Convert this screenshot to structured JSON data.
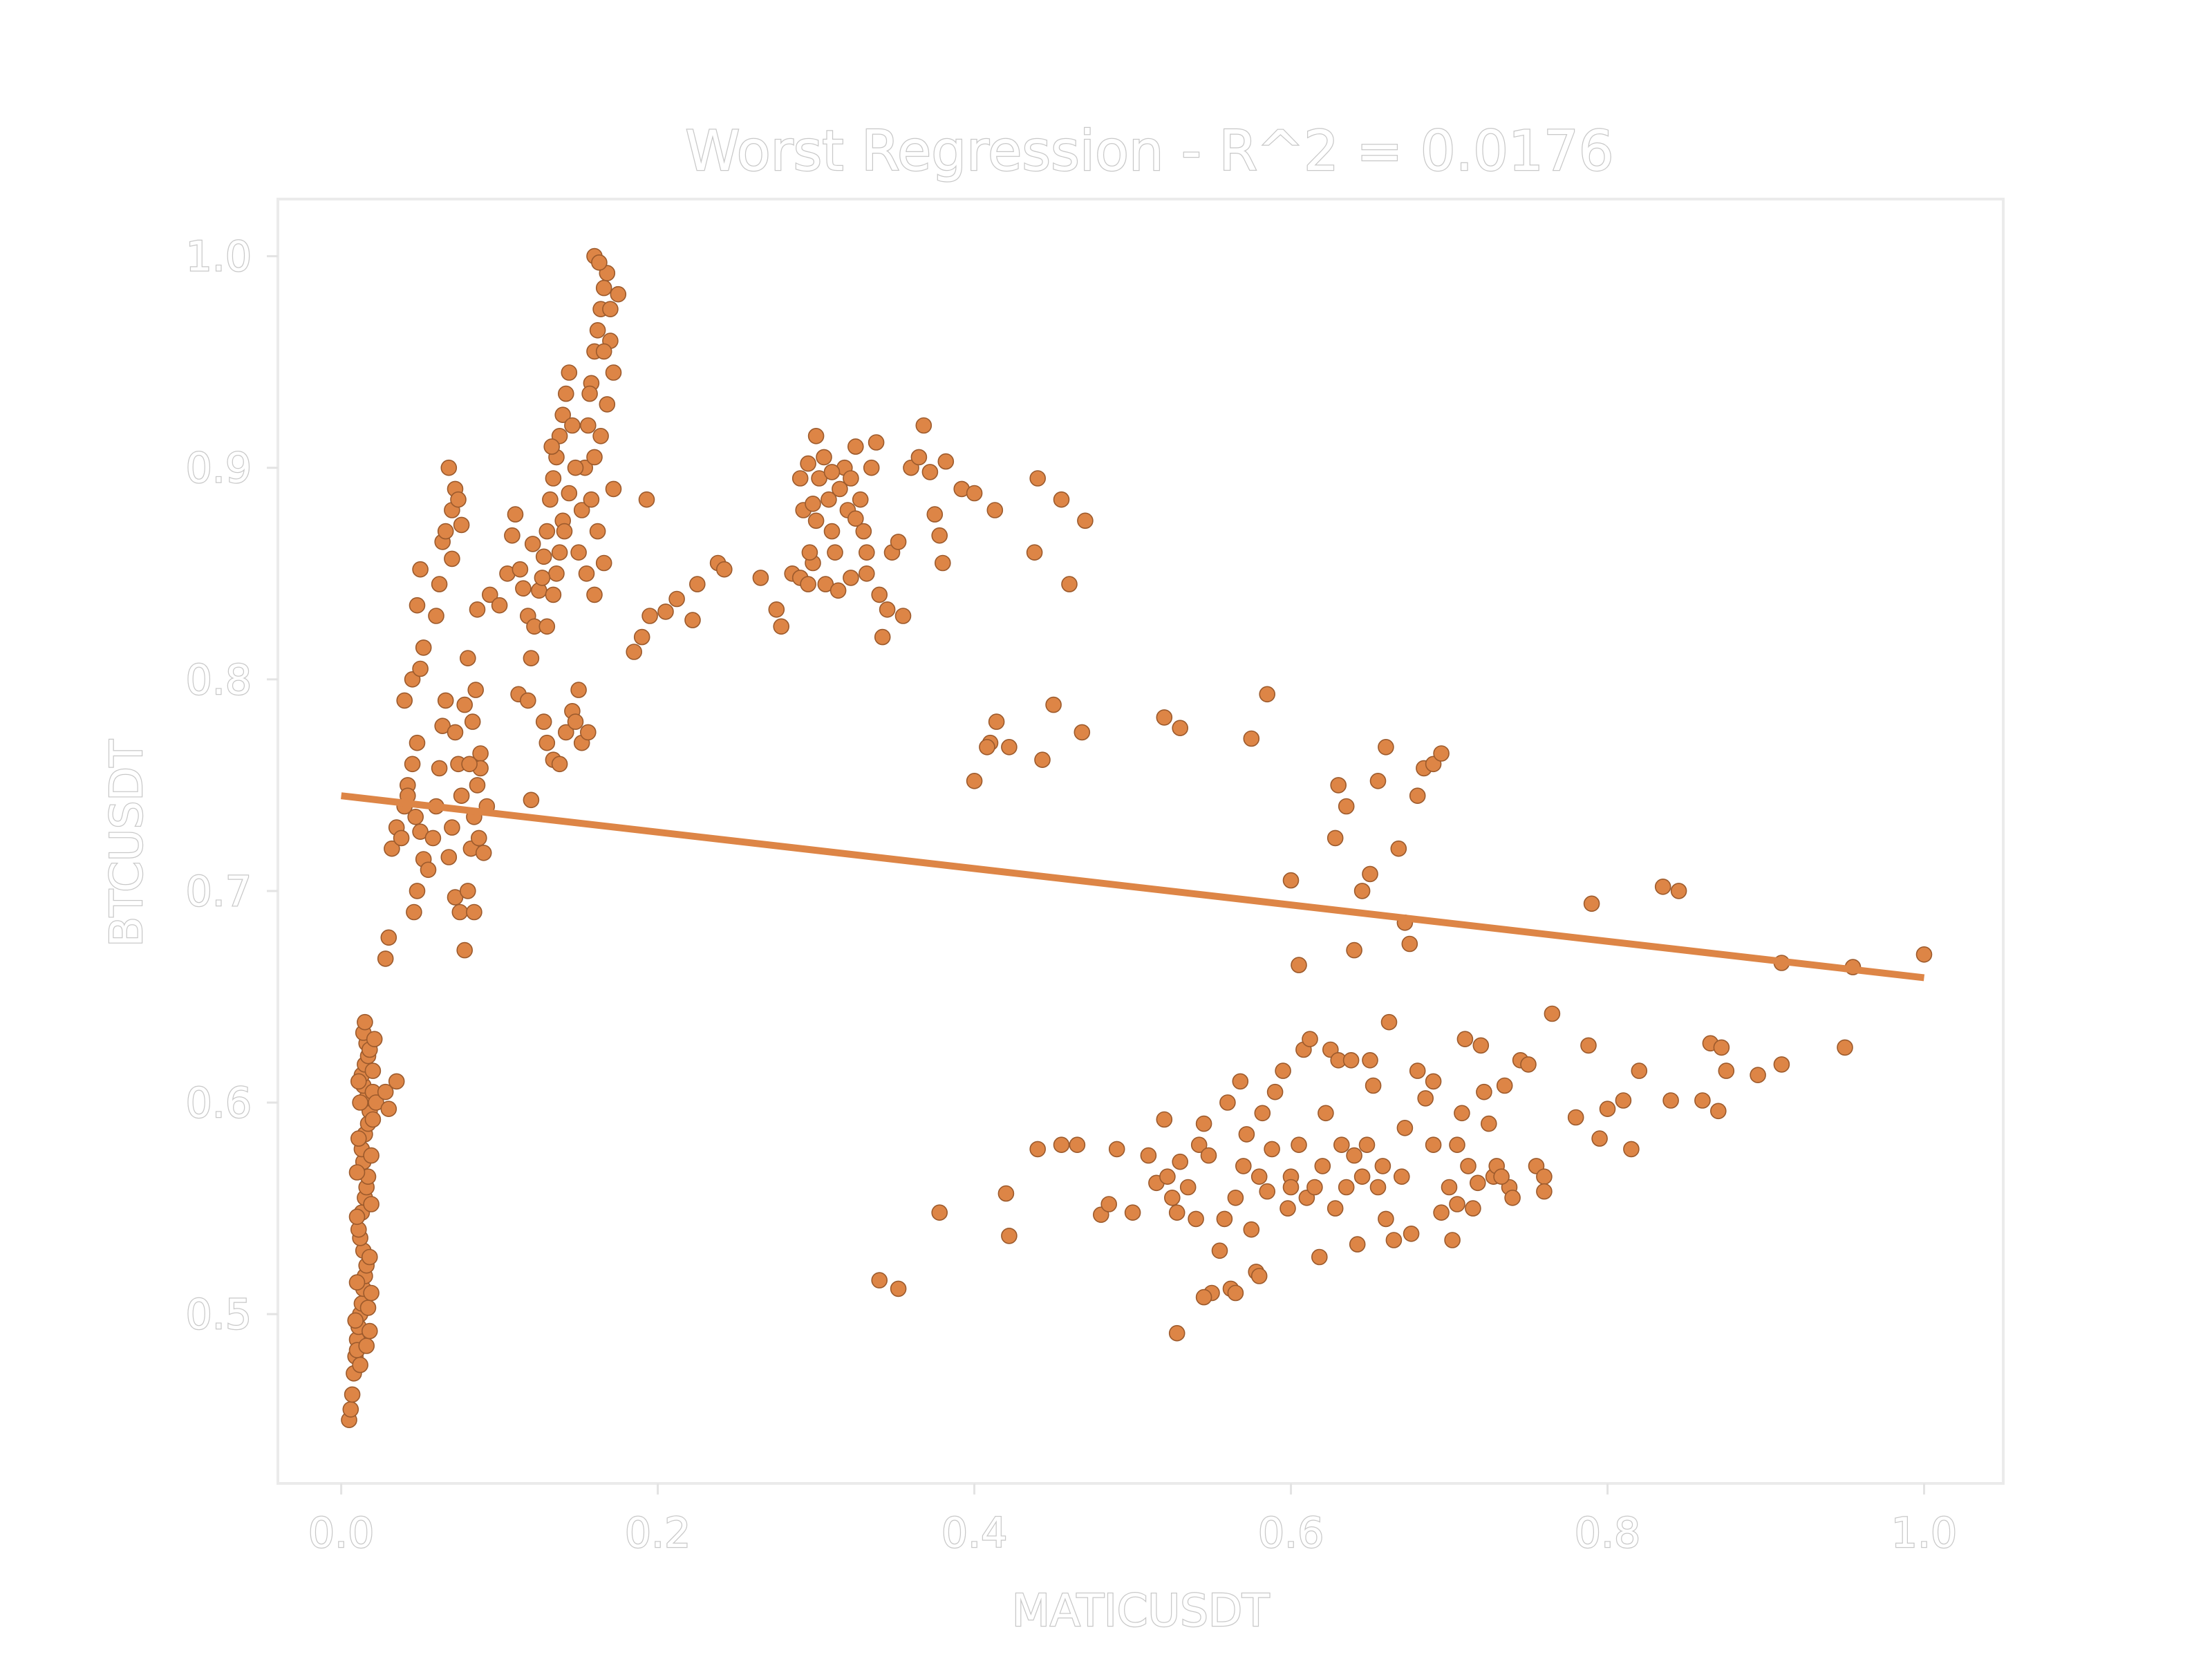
{
  "chart_data": {
    "type": "scatter",
    "title": "Worst Regression - R^2 = 0.0176",
    "xlabel": "MATICUSDT",
    "ylabel": "BTCUSDT",
    "xlim": [
      -0.04,
      1.05
    ],
    "ylim": [
      0.42,
      1.027
    ],
    "xticks": [
      0.0,
      0.2,
      0.4,
      0.6,
      0.8,
      1.0
    ],
    "yticks": [
      0.5,
      0.6,
      0.7,
      0.8,
      0.9,
      1.0
    ],
    "xtick_labels": [
      "0.0",
      "0.2",
      "0.4",
      "0.6",
      "0.8",
      "1.0"
    ],
    "ytick_labels": [
      "0.5",
      "0.6",
      "0.7",
      "0.8",
      "0.9",
      "1.0"
    ],
    "grid": false,
    "point_color": "#dd8546",
    "point_edge_color": "#9c5a2c",
    "regression_line": {
      "x": [
        0.0,
        1.0
      ],
      "y": [
        0.745,
        0.659
      ],
      "color": "#dd8546"
    },
    "points": [
      [
        0.005,
        0.45
      ],
      [
        0.006,
        0.455
      ],
      [
        0.007,
        0.462
      ],
      [
        0.008,
        0.472
      ],
      [
        0.009,
        0.48
      ],
      [
        0.01,
        0.488
      ],
      [
        0.011,
        0.494
      ],
      [
        0.012,
        0.5
      ],
      [
        0.013,
        0.505
      ],
      [
        0.014,
        0.512
      ],
      [
        0.015,
        0.518
      ],
      [
        0.016,
        0.523
      ],
      [
        0.014,
        0.53
      ],
      [
        0.012,
        0.536
      ],
      [
        0.011,
        0.54
      ],
      [
        0.013,
        0.548
      ],
      [
        0.015,
        0.555
      ],
      [
        0.016,
        0.56
      ],
      [
        0.017,
        0.565
      ],
      [
        0.014,
        0.572
      ],
      [
        0.013,
        0.578
      ],
      [
        0.015,
        0.585
      ],
      [
        0.017,
        0.59
      ],
      [
        0.018,
        0.596
      ],
      [
        0.016,
        0.602
      ],
      [
        0.014,
        0.608
      ],
      [
        0.013,
        0.613
      ],
      [
        0.015,
        0.618
      ],
      [
        0.017,
        0.622
      ],
      [
        0.016,
        0.628
      ],
      [
        0.014,
        0.633
      ],
      [
        0.015,
        0.638
      ],
      [
        0.018,
        0.625
      ],
      [
        0.02,
        0.615
      ],
      [
        0.01,
        0.483
      ],
      [
        0.012,
        0.476
      ],
      [
        0.016,
        0.485
      ],
      [
        0.018,
        0.492
      ],
      [
        0.009,
        0.497
      ],
      [
        0.017,
        0.503
      ],
      [
        0.019,
        0.51
      ],
      [
        0.01,
        0.515
      ],
      [
        0.018,
        0.527
      ],
      [
        0.01,
        0.546
      ],
      [
        0.019,
        0.552
      ],
      [
        0.01,
        0.567
      ],
      [
        0.019,
        0.575
      ],
      [
        0.011,
        0.583
      ],
      [
        0.02,
        0.592
      ],
      [
        0.012,
        0.6
      ],
      [
        0.02,
        0.605
      ],
      [
        0.011,
        0.61
      ],
      [
        0.021,
        0.63
      ],
      [
        0.022,
        0.6
      ],
      [
        0.028,
        0.605
      ],
      [
        0.035,
        0.61
      ],
      [
        0.03,
        0.597
      ],
      [
        0.028,
        0.668
      ],
      [
        0.03,
        0.678
      ],
      [
        0.032,
        0.72
      ],
      [
        0.035,
        0.73
      ],
      [
        0.038,
        0.725
      ],
      [
        0.04,
        0.74
      ],
      [
        0.042,
        0.75
      ],
      [
        0.045,
        0.76
      ],
      [
        0.048,
        0.77
      ],
      [
        0.04,
        0.79
      ],
      [
        0.045,
        0.8
      ],
      [
        0.05,
        0.805
      ],
      [
        0.052,
        0.815
      ],
      [
        0.048,
        0.835
      ],
      [
        0.05,
        0.852
      ],
      [
        0.042,
        0.745
      ],
      [
        0.047,
        0.735
      ],
      [
        0.05,
        0.728
      ],
      [
        0.052,
        0.715
      ],
      [
        0.048,
        0.7
      ],
      [
        0.046,
        0.69
      ],
      [
        0.055,
        0.71
      ],
      [
        0.058,
        0.725
      ],
      [
        0.06,
        0.74
      ],
      [
        0.062,
        0.758
      ],
      [
        0.064,
        0.778
      ],
      [
        0.066,
        0.79
      ],
      [
        0.06,
        0.83
      ],
      [
        0.062,
        0.845
      ],
      [
        0.064,
        0.865
      ],
      [
        0.066,
        0.87
      ],
      [
        0.07,
        0.88
      ],
      [
        0.072,
        0.89
      ],
      [
        0.068,
        0.9
      ],
      [
        0.074,
        0.885
      ],
      [
        0.076,
        0.873
      ],
      [
        0.07,
        0.857
      ],
      [
        0.072,
        0.775
      ],
      [
        0.074,
        0.76
      ],
      [
        0.076,
        0.745
      ],
      [
        0.07,
        0.73
      ],
      [
        0.068,
        0.716
      ],
      [
        0.072,
        0.697
      ],
      [
        0.075,
        0.69
      ],
      [
        0.078,
        0.672
      ],
      [
        0.08,
        0.7
      ],
      [
        0.082,
        0.72
      ],
      [
        0.084,
        0.735
      ],
      [
        0.086,
        0.75
      ],
      [
        0.088,
        0.765
      ],
      [
        0.083,
        0.78
      ],
      [
        0.085,
        0.795
      ],
      [
        0.08,
        0.81
      ],
      [
        0.086,
        0.833
      ],
      [
        0.084,
        0.69
      ],
      [
        0.09,
        0.718
      ],
      [
        0.092,
        0.74
      ],
      [
        0.088,
        0.758
      ],
      [
        0.094,
        0.84
      ],
      [
        0.078,
        0.788
      ],
      [
        0.081,
        0.76
      ],
      [
        0.087,
        0.725
      ],
      [
        0.1,
        0.835
      ],
      [
        0.105,
        0.85
      ],
      [
        0.108,
        0.868
      ],
      [
        0.11,
        0.878
      ],
      [
        0.115,
        0.843
      ],
      [
        0.118,
        0.83
      ],
      [
        0.112,
        0.793
      ],
      [
        0.118,
        0.79
      ],
      [
        0.12,
        0.81
      ],
      [
        0.122,
        0.825
      ],
      [
        0.125,
        0.842
      ],
      [
        0.128,
        0.858
      ],
      [
        0.13,
        0.87
      ],
      [
        0.132,
        0.885
      ],
      [
        0.134,
        0.895
      ],
      [
        0.136,
        0.905
      ],
      [
        0.138,
        0.915
      ],
      [
        0.14,
        0.925
      ],
      [
        0.142,
        0.935
      ],
      [
        0.144,
        0.945
      ],
      [
        0.14,
        0.875
      ],
      [
        0.138,
        0.86
      ],
      [
        0.136,
        0.85
      ],
      [
        0.134,
        0.84
      ],
      [
        0.13,
        0.825
      ],
      [
        0.128,
        0.78
      ],
      [
        0.13,
        0.77
      ],
      [
        0.134,
        0.762
      ],
      [
        0.138,
        0.76
      ],
      [
        0.142,
        0.775
      ],
      [
        0.146,
        0.785
      ],
      [
        0.15,
        0.795
      ],
      [
        0.148,
        0.78
      ],
      [
        0.152,
        0.77
      ],
      [
        0.156,
        0.775
      ],
      [
        0.15,
        0.86
      ],
      [
        0.152,
        0.88
      ],
      [
        0.154,
        0.9
      ],
      [
        0.156,
        0.92
      ],
      [
        0.158,
        0.94
      ],
      [
        0.16,
        0.955
      ],
      [
        0.162,
        0.965
      ],
      [
        0.164,
        0.975
      ],
      [
        0.166,
        0.985
      ],
      [
        0.168,
        0.992
      ],
      [
        0.16,
        1.0
      ],
      [
        0.163,
        0.997
      ],
      [
        0.17,
        0.96
      ],
      [
        0.172,
        0.945
      ],
      [
        0.168,
        0.93
      ],
      [
        0.164,
        0.915
      ],
      [
        0.16,
        0.905
      ],
      [
        0.158,
        0.885
      ],
      [
        0.162,
        0.87
      ],
      [
        0.166,
        0.855
      ],
      [
        0.16,
        0.84
      ],
      [
        0.175,
        0.982
      ],
      [
        0.17,
        0.975
      ],
      [
        0.166,
        0.955
      ],
      [
        0.146,
        0.92
      ],
      [
        0.148,
        0.9
      ],
      [
        0.144,
        0.888
      ],
      [
        0.141,
        0.87
      ],
      [
        0.155,
        0.85
      ],
      [
        0.127,
        0.848
      ],
      [
        0.121,
        0.864
      ],
      [
        0.133,
        0.91
      ],
      [
        0.157,
        0.935
      ],
      [
        0.172,
        0.89
      ],
      [
        0.185,
        0.813
      ],
      [
        0.19,
        0.82
      ],
      [
        0.193,
        0.885
      ],
      [
        0.12,
        0.743
      ],
      [
        0.113,
        0.852
      ],
      [
        0.195,
        0.83
      ],
      [
        0.205,
        0.832
      ],
      [
        0.212,
        0.838
      ],
      [
        0.222,
        0.828
      ],
      [
        0.225,
        0.845
      ],
      [
        0.238,
        0.855
      ],
      [
        0.242,
        0.852
      ],
      [
        0.265,
        0.848
      ],
      [
        0.275,
        0.833
      ],
      [
        0.278,
        0.825
      ],
      [
        0.285,
        0.85
      ],
      [
        0.29,
        0.848
      ],
      [
        0.295,
        0.845
      ],
      [
        0.298,
        0.855
      ],
      [
        0.3,
        0.875
      ],
      [
        0.302,
        0.895
      ],
      [
        0.305,
        0.905
      ],
      [
        0.308,
        0.885
      ],
      [
        0.31,
        0.87
      ],
      [
        0.312,
        0.86
      ],
      [
        0.315,
        0.89
      ],
      [
        0.318,
        0.9
      ],
      [
        0.32,
        0.88
      ],
      [
        0.322,
        0.895
      ],
      [
        0.325,
        0.91
      ],
      [
        0.328,
        0.885
      ],
      [
        0.33,
        0.87
      ],
      [
        0.332,
        0.86
      ],
      [
        0.335,
        0.9
      ],
      [
        0.338,
        0.912
      ],
      [
        0.3,
        0.915
      ],
      [
        0.295,
        0.902
      ],
      [
        0.29,
        0.895
      ],
      [
        0.292,
        0.88
      ],
      [
        0.296,
        0.86
      ],
      [
        0.306,
        0.845
      ],
      [
        0.314,
        0.842
      ],
      [
        0.322,
        0.848
      ],
      [
        0.332,
        0.85
      ],
      [
        0.34,
        0.84
      ],
      [
        0.342,
        0.82
      ],
      [
        0.345,
        0.833
      ],
      [
        0.348,
        0.86
      ],
      [
        0.352,
        0.865
      ],
      [
        0.355,
        0.83
      ],
      [
        0.36,
        0.9
      ],
      [
        0.365,
        0.905
      ],
      [
        0.368,
        0.92
      ],
      [
        0.372,
        0.898
      ],
      [
        0.375,
        0.878
      ],
      [
        0.378,
        0.868
      ],
      [
        0.38,
        0.855
      ],
      [
        0.382,
        0.903
      ],
      [
        0.392,
        0.89
      ],
      [
        0.4,
        0.888
      ],
      [
        0.413,
        0.88
      ],
      [
        0.44,
        0.895
      ],
      [
        0.455,
        0.885
      ],
      [
        0.47,
        0.875
      ],
      [
        0.46,
        0.845
      ],
      [
        0.438,
        0.86
      ],
      [
        0.4,
        0.752
      ],
      [
        0.41,
        0.77
      ],
      [
        0.414,
        0.78
      ],
      [
        0.422,
        0.768
      ],
      [
        0.443,
        0.762
      ],
      [
        0.45,
        0.788
      ],
      [
        0.468,
        0.775
      ],
      [
        0.408,
        0.768
      ],
      [
        0.325,
        0.876
      ],
      [
        0.31,
        0.898
      ],
      [
        0.298,
        0.883
      ],
      [
        0.52,
        0.782
      ],
      [
        0.53,
        0.777
      ],
      [
        0.575,
        0.772
      ],
      [
        0.585,
        0.793
      ],
      [
        0.6,
        0.705
      ],
      [
        0.605,
        0.665
      ],
      [
        0.628,
        0.725
      ],
      [
        0.63,
        0.75
      ],
      [
        0.635,
        0.74
      ],
      [
        0.64,
        0.672
      ],
      [
        0.645,
        0.7
      ],
      [
        0.65,
        0.708
      ],
      [
        0.655,
        0.752
      ],
      [
        0.66,
        0.768
      ],
      [
        0.668,
        0.72
      ],
      [
        0.672,
        0.685
      ],
      [
        0.675,
        0.675
      ],
      [
        0.68,
        0.745
      ],
      [
        0.684,
        0.758
      ],
      [
        0.69,
        0.76
      ],
      [
        0.695,
        0.765
      ],
      [
        0.79,
        0.694
      ],
      [
        0.835,
        0.702
      ],
      [
        0.845,
        0.7
      ],
      [
        0.91,
        0.666
      ],
      [
        0.955,
        0.664
      ],
      [
        1.0,
        0.67
      ],
      [
        0.34,
        0.516
      ],
      [
        0.352,
        0.512
      ],
      [
        0.378,
        0.548
      ],
      [
        0.42,
        0.557
      ],
      [
        0.422,
        0.537
      ],
      [
        0.44,
        0.578
      ],
      [
        0.455,
        0.58
      ],
      [
        0.465,
        0.58
      ],
      [
        0.48,
        0.547
      ],
      [
        0.485,
        0.552
      ],
      [
        0.49,
        0.578
      ],
      [
        0.5,
        0.548
      ],
      [
        0.51,
        0.575
      ],
      [
        0.515,
        0.562
      ],
      [
        0.52,
        0.592
      ],
      [
        0.522,
        0.565
      ],
      [
        0.525,
        0.555
      ],
      [
        0.528,
        0.548
      ],
      [
        0.53,
        0.572
      ],
      [
        0.535,
        0.56
      ],
      [
        0.54,
        0.545
      ],
      [
        0.542,
        0.58
      ],
      [
        0.545,
        0.59
      ],
      [
        0.548,
        0.575
      ],
      [
        0.55,
        0.51
      ],
      [
        0.555,
        0.53
      ],
      [
        0.558,
        0.545
      ],
      [
        0.56,
        0.6
      ],
      [
        0.562,
        0.512
      ],
      [
        0.565,
        0.555
      ],
      [
        0.568,
        0.61
      ],
      [
        0.57,
        0.57
      ],
      [
        0.572,
        0.585
      ],
      [
        0.575,
        0.54
      ],
      [
        0.578,
        0.52
      ],
      [
        0.58,
        0.565
      ],
      [
        0.582,
        0.595
      ],
      [
        0.585,
        0.558
      ],
      [
        0.588,
        0.578
      ],
      [
        0.59,
        0.605
      ],
      [
        0.595,
        0.615
      ],
      [
        0.598,
        0.55
      ],
      [
        0.6,
        0.565
      ],
      [
        0.605,
        0.58
      ],
      [
        0.608,
        0.625
      ],
      [
        0.61,
        0.555
      ],
      [
        0.612,
        0.63
      ],
      [
        0.615,
        0.56
      ],
      [
        0.618,
        0.527
      ],
      [
        0.62,
        0.57
      ],
      [
        0.622,
        0.595
      ],
      [
        0.625,
        0.625
      ],
      [
        0.628,
        0.55
      ],
      [
        0.63,
        0.62
      ],
      [
        0.632,
        0.58
      ],
      [
        0.635,
        0.56
      ],
      [
        0.638,
        0.62
      ],
      [
        0.64,
        0.575
      ],
      [
        0.642,
        0.533
      ],
      [
        0.645,
        0.565
      ],
      [
        0.648,
        0.58
      ],
      [
        0.65,
        0.62
      ],
      [
        0.652,
        0.608
      ],
      [
        0.655,
        0.56
      ],
      [
        0.658,
        0.57
      ],
      [
        0.66,
        0.545
      ],
      [
        0.662,
        0.638
      ],
      [
        0.665,
        0.535
      ],
      [
        0.67,
        0.565
      ],
      [
        0.672,
        0.588
      ],
      [
        0.676,
        0.538
      ],
      [
        0.68,
        0.615
      ],
      [
        0.685,
        0.602
      ],
      [
        0.69,
        0.61
      ],
      [
        0.695,
        0.548
      ],
      [
        0.7,
        0.56
      ],
      [
        0.702,
        0.535
      ],
      [
        0.705,
        0.58
      ],
      [
        0.708,
        0.595
      ],
      [
        0.71,
        0.63
      ],
      [
        0.712,
        0.57
      ],
      [
        0.715,
        0.55
      ],
      [
        0.718,
        0.562
      ],
      [
        0.72,
        0.627
      ],
      [
        0.722,
        0.605
      ],
      [
        0.725,
        0.59
      ],
      [
        0.728,
        0.565
      ],
      [
        0.73,
        0.57
      ],
      [
        0.735,
        0.608
      ],
      [
        0.738,
        0.56
      ],
      [
        0.74,
        0.555
      ],
      [
        0.745,
        0.62
      ],
      [
        0.75,
        0.618
      ],
      [
        0.755,
        0.57
      ],
      [
        0.76,
        0.565
      ],
      [
        0.765,
        0.642
      ],
      [
        0.78,
        0.593
      ],
      [
        0.788,
        0.627
      ],
      [
        0.795,
        0.583
      ],
      [
        0.8,
        0.597
      ],
      [
        0.81,
        0.601
      ],
      [
        0.815,
        0.578
      ],
      [
        0.82,
        0.615
      ],
      [
        0.84,
        0.601
      ],
      [
        0.86,
        0.601
      ],
      [
        0.865,
        0.628
      ],
      [
        0.87,
        0.596
      ],
      [
        0.872,
        0.626
      ],
      [
        0.875,
        0.615
      ],
      [
        0.895,
        0.613
      ],
      [
        0.91,
        0.618
      ],
      [
        0.95,
        0.626
      ],
      [
        0.528,
        0.491
      ],
      [
        0.545,
        0.508
      ],
      [
        0.565,
        0.51
      ],
      [
        0.58,
        0.518
      ],
      [
        0.6,
        0.56
      ],
      [
        0.69,
        0.58
      ],
      [
        0.705,
        0.552
      ],
      [
        0.733,
        0.565
      ],
      [
        0.76,
        0.558
      ]
    ]
  }
}
